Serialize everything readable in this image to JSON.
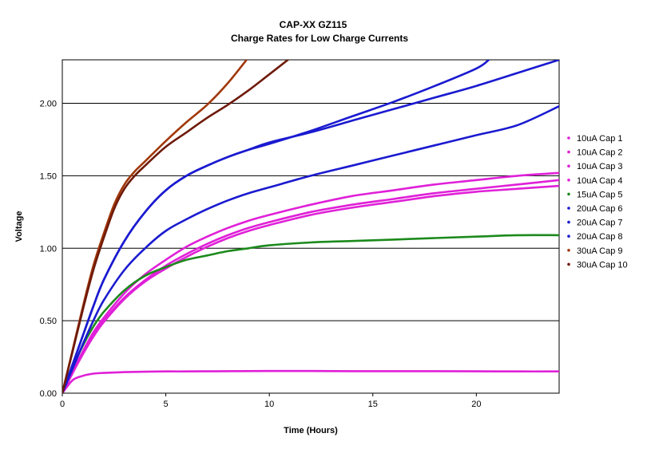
{
  "chart_data": {
    "type": "line",
    "title": "CAP-XX GZ115",
    "subtitle": "Charge Rates for Low Charge Currents",
    "xlabel": "Time (Hours)",
    "ylabel": "Voltage",
    "xlim": [
      0,
      24
    ],
    "ylim": [
      0,
      2.3
    ],
    "x_ticks": [
      0,
      5,
      10,
      15,
      20
    ],
    "y_ticks": [
      0.0,
      0.5,
      1.0,
      1.5,
      2.0
    ],
    "x_tick_labels": [
      "0",
      "5",
      "10",
      "15",
      "20"
    ],
    "y_tick_labels": [
      "0.00",
      "0.50",
      "1.00",
      "1.50",
      "2.00"
    ],
    "grid": "horizontal",
    "legend_position": "right",
    "series": [
      {
        "name": "10uA Cap 1",
        "color": "#e020d8",
        "x": [
          0,
          0.5,
          1,
          1.5,
          2,
          3,
          4,
          5,
          6,
          8,
          10,
          12,
          14,
          16,
          18,
          20,
          22,
          24
        ],
        "y": [
          0,
          0.09,
          0.12,
          0.135,
          0.14,
          0.145,
          0.148,
          0.15,
          0.15,
          0.152,
          0.153,
          0.153,
          0.152,
          0.152,
          0.152,
          0.151,
          0.15,
          0.15
        ]
      },
      {
        "name": "10uA Cap 2",
        "color": "#e020d8",
        "x": [
          0,
          0.5,
          1,
          1.5,
          2,
          3,
          4,
          5,
          6,
          7,
          8,
          9,
          10,
          12,
          14,
          16,
          18,
          20,
          22,
          24
        ],
        "y": [
          0,
          0.14,
          0.28,
          0.4,
          0.5,
          0.66,
          0.78,
          0.88,
          0.96,
          1.03,
          1.09,
          1.14,
          1.18,
          1.25,
          1.3,
          1.34,
          1.38,
          1.41,
          1.44,
          1.47
        ]
      },
      {
        "name": "10uA Cap 3",
        "color": "#e020d8",
        "x": [
          0,
          0.5,
          1,
          1.5,
          2,
          3,
          4,
          5,
          6,
          7,
          8,
          9,
          10,
          12,
          14,
          16,
          18,
          20,
          22,
          24
        ],
        "y": [
          0,
          0.15,
          0.29,
          0.42,
          0.52,
          0.69,
          0.82,
          0.92,
          1.01,
          1.08,
          1.14,
          1.19,
          1.23,
          1.3,
          1.36,
          1.4,
          1.44,
          1.47,
          1.5,
          1.52
        ]
      },
      {
        "name": "10uA Cap 4",
        "color": "#e020d8",
        "x": [
          0,
          0.5,
          1,
          1.5,
          2,
          3,
          4,
          5,
          6,
          7,
          8,
          9,
          10,
          12,
          14,
          16,
          18,
          20,
          22,
          24
        ],
        "y": [
          0,
          0.14,
          0.27,
          0.39,
          0.49,
          0.65,
          0.77,
          0.86,
          0.94,
          1.01,
          1.07,
          1.12,
          1.16,
          1.23,
          1.28,
          1.32,
          1.36,
          1.39,
          1.41,
          1.43
        ]
      },
      {
        "name": "15uA Cap 5",
        "color": "#1c8a1c",
        "x": [
          0,
          0.5,
          1,
          1.5,
          2,
          3,
          4,
          5,
          6,
          7,
          8,
          9,
          10,
          12,
          14,
          16,
          18,
          20,
          22,
          24
        ],
        "y": [
          0,
          0.18,
          0.33,
          0.46,
          0.56,
          0.71,
          0.81,
          0.87,
          0.92,
          0.95,
          0.98,
          1.0,
          1.02,
          1.04,
          1.05,
          1.06,
          1.07,
          1.08,
          1.09,
          1.09
        ]
      },
      {
        "name": "20uA Cap 6",
        "color": "#1a1ad0",
        "x": [
          0,
          0.5,
          1,
          1.5,
          2,
          3,
          4,
          5,
          6,
          7,
          8,
          9,
          10,
          12,
          14,
          16,
          18,
          20,
          22,
          24
        ],
        "y": [
          0,
          0.17,
          0.34,
          0.5,
          0.64,
          0.85,
          1.0,
          1.12,
          1.2,
          1.27,
          1.33,
          1.38,
          1.42,
          1.5,
          1.57,
          1.64,
          1.71,
          1.78,
          1.85,
          1.98
        ]
      },
      {
        "name": "20uA Cap 7",
        "color": "#1a1ad0",
        "x": [
          0,
          0.5,
          1,
          1.5,
          2,
          3,
          4,
          5,
          6,
          7,
          8,
          9,
          10,
          12,
          14,
          16,
          18,
          20,
          20.6
        ],
        "y": [
          0,
          0.2,
          0.4,
          0.6,
          0.78,
          1.05,
          1.25,
          1.4,
          1.5,
          1.57,
          1.63,
          1.68,
          1.72,
          1.81,
          1.91,
          2.01,
          2.12,
          2.24,
          2.3
        ]
      },
      {
        "name": "20uA Cap 8",
        "color": "#1a1ad0",
        "x": [
          0,
          0.5,
          1,
          1.5,
          2,
          3,
          4,
          5,
          6,
          7,
          8,
          9,
          10,
          12,
          14,
          16,
          18,
          20,
          22,
          24
        ],
        "y": [
          0,
          0.2,
          0.4,
          0.6,
          0.78,
          1.05,
          1.25,
          1.4,
          1.5,
          1.57,
          1.63,
          1.68,
          1.73,
          1.8,
          1.88,
          1.96,
          2.04,
          2.12,
          2.21,
          2.3
        ]
      },
      {
        "name": "30uA Cap 9",
        "color": "#a0380a",
        "x": [
          0,
          0.5,
          1,
          1.5,
          2,
          2.5,
          3,
          3.5,
          4,
          5,
          6,
          7,
          8,
          8.9
        ],
        "y": [
          0,
          0.3,
          0.6,
          0.88,
          1.1,
          1.3,
          1.44,
          1.53,
          1.6,
          1.74,
          1.87,
          1.99,
          2.14,
          2.3
        ]
      },
      {
        "name": "30uA Cap 10",
        "color": "#6e1a0a",
        "x": [
          0,
          0.5,
          1,
          1.5,
          2,
          2.5,
          3,
          3.5,
          4,
          5,
          6,
          7,
          8,
          9,
          10,
          10.9
        ],
        "y": [
          0,
          0.29,
          0.58,
          0.85,
          1.07,
          1.27,
          1.41,
          1.5,
          1.57,
          1.7,
          1.8,
          1.9,
          1.99,
          2.09,
          2.2,
          2.3
        ]
      }
    ]
  }
}
